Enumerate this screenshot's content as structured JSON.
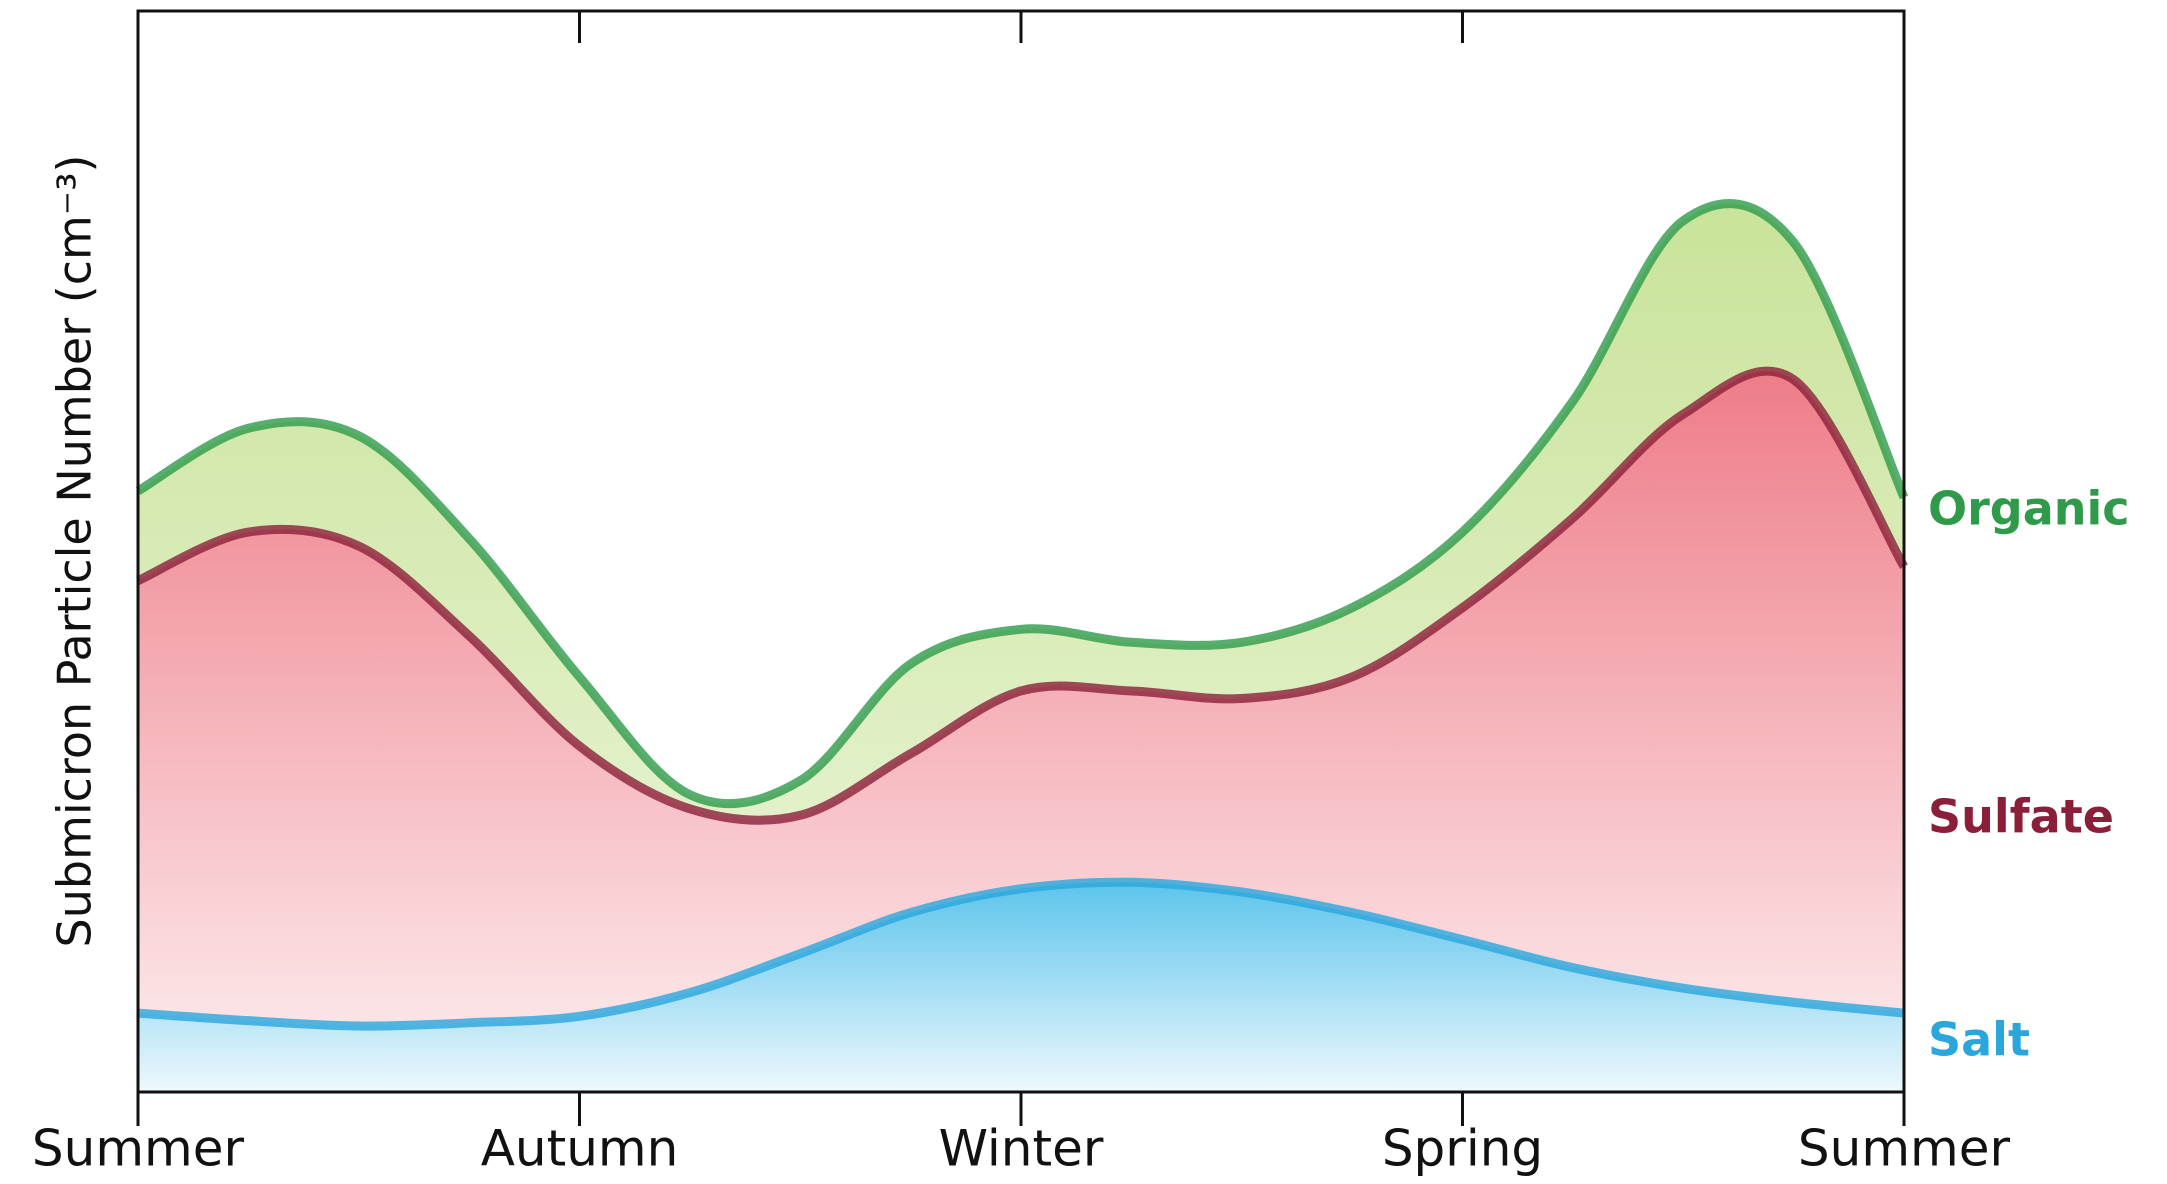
{
  "chart_data": {
    "type": "area",
    "stacked": true,
    "y_label": "Submicron Particle Number (cm⁻³)",
    "categories": [
      "Summer",
      null,
      null,
      null,
      "Autumn",
      null,
      null,
      null,
      "Winter",
      null,
      null,
      null,
      "Spring",
      null,
      null,
      null,
      "Summer"
    ],
    "ylim": [
      0,
      100
    ],
    "series": [
      {
        "name": "Salt",
        "color": "#2aa6dc",
        "values": [
          7.3,
          6.6,
          6.1,
          6.4,
          7.0,
          9.2,
          12.8,
          16.6,
          18.8,
          19.4,
          18.5,
          16.6,
          14.1,
          11.5,
          9.6,
          8.3,
          7.3
        ]
      },
      {
        "name": "Sulfate",
        "color": "#8b1f3a",
        "values": [
          40.0,
          45.2,
          44.4,
          35.8,
          25.0,
          17.0,
          12.8,
          14.7,
          18.3,
          17.7,
          17.9,
          21.8,
          30.7,
          41.6,
          53.1,
          57.6,
          41.3
        ]
      },
      {
        "name": "Organic",
        "color": "#2e9a4a",
        "values": [
          8.3,
          9.6,
          10.2,
          9.0,
          6.4,
          1.3,
          3.2,
          8.3,
          5.7,
          4.5,
          5.2,
          6.4,
          7.0,
          10.8,
          17.9,
          12.7,
          6.4
        ]
      }
    ]
  }
}
